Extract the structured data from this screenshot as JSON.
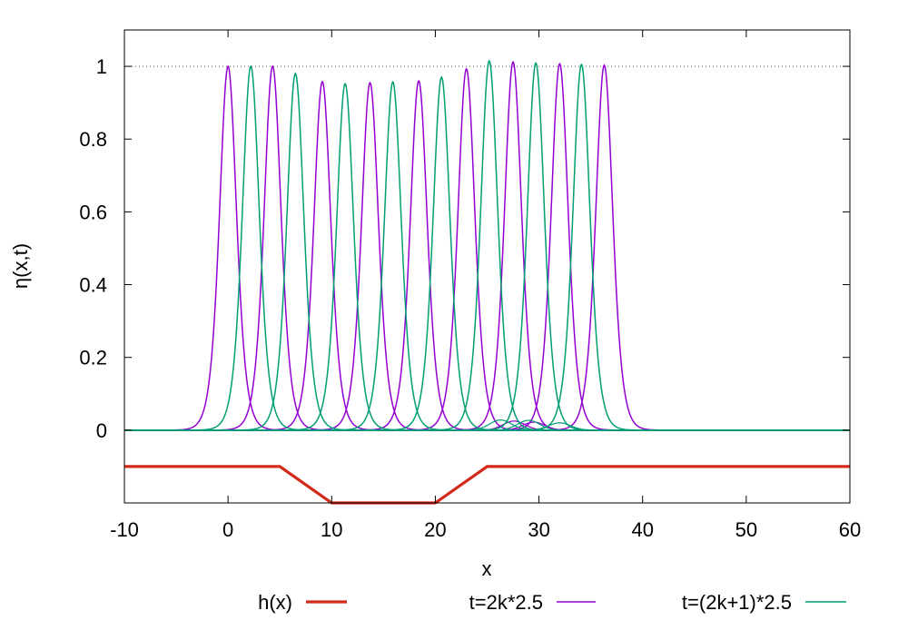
{
  "chart_data": {
    "type": "line",
    "title": "",
    "xlabel": "x",
    "ylabel": "η(x,t)",
    "xlim": [
      -10,
      60
    ],
    "ylim": [
      -0.2,
      1.1
    ],
    "x_ticks": [
      -10,
      0,
      10,
      20,
      30,
      40,
      50,
      60
    ],
    "y_ticks": [
      0,
      0.2,
      0.4,
      0.6,
      0.8,
      1
    ],
    "reference_line": {
      "y": 1,
      "style": "dotted"
    },
    "legend_position": "bottom",
    "grid": false,
    "series": [
      {
        "name": "h(x)",
        "color": "#d42a1a",
        "x": [
          -10,
          5,
          10,
          20,
          25,
          60
        ],
        "y": [
          -0.1,
          -0.1,
          -0.2,
          -0.2,
          -0.1,
          -0.1
        ]
      },
      {
        "name": "t=2k*2.5",
        "color": "#9400d3",
        "pulses": {
          "centers": [
            0,
            4.3,
            9.1,
            13.7,
            18.4,
            23.0,
            27.5,
            32.0,
            36.3
          ],
          "peaks": [
            1.0,
            1.0,
            0.958,
            0.955,
            0.96,
            0.993,
            1.012,
            1.007,
            1.003
          ],
          "width": 1.1
        },
        "ripples": {
          "centers": [
            27.6,
            29.5
          ],
          "amps": [
            0.025,
            0.022
          ],
          "width": 1.5
        }
      },
      {
        "name": "t=(2k+1)*2.5",
        "color": "#009e73",
        "pulses": {
          "centers": [
            2.2,
            6.5,
            11.3,
            15.9,
            20.6,
            25.2,
            29.7,
            34.1
          ],
          "peaks": [
            1.0,
            0.98,
            0.952,
            0.957,
            0.97,
            1.015,
            1.009,
            1.005
          ],
          "width": 1.1
        },
        "ripples": {
          "centers": [
            26.3,
            29.0,
            32.0
          ],
          "amps": [
            0.028,
            0.027,
            0.02
          ],
          "width": 1.5
        }
      }
    ]
  }
}
